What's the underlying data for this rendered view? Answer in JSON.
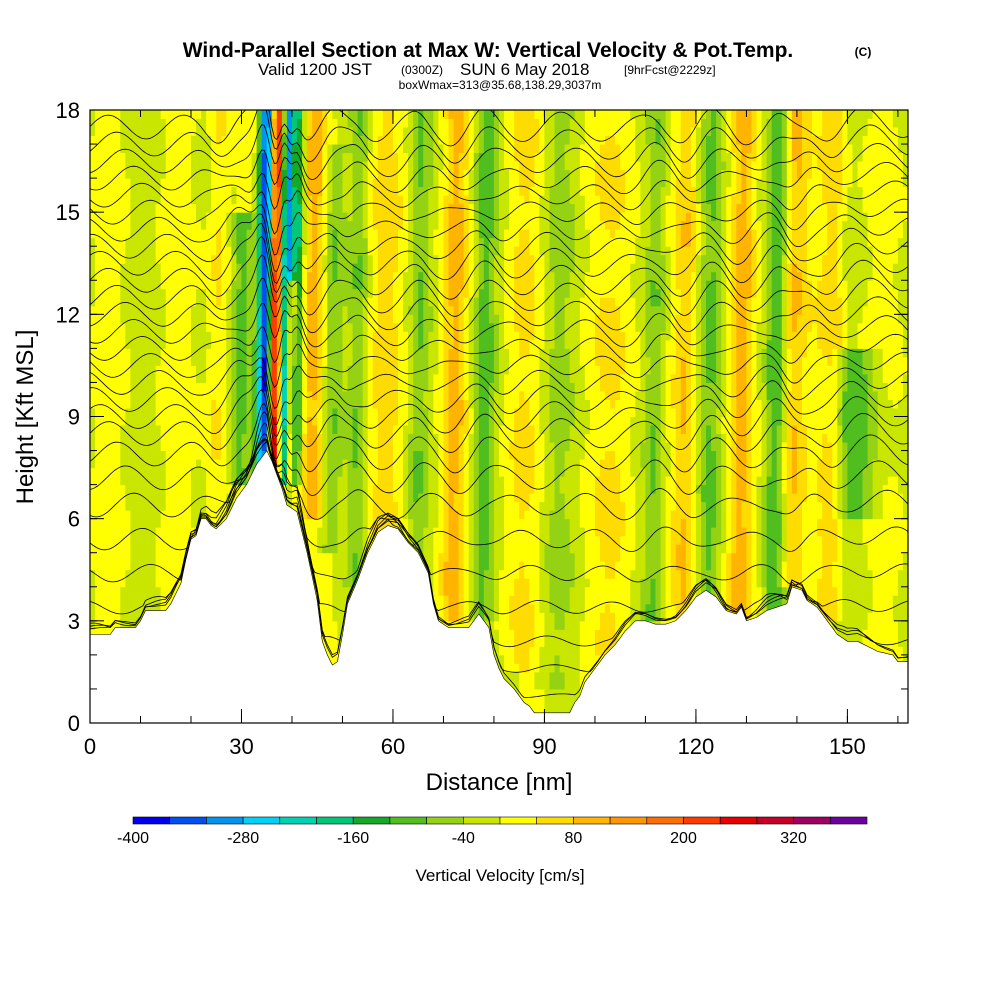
{
  "header": {
    "title": "Wind-Parallel Section at Max W: Vertical Velocity & Pot.Temp.",
    "title_mark": "(C)",
    "valid_prefix": "Valid 1200 JST",
    "valid_utc": "(0300Z)",
    "valid_date": "SUN 6 May 2018",
    "forecast": "[9hrFcst@2229z]",
    "boxinfo": "boxWmax=313@35.68,138.29,3037m"
  },
  "chart_data": {
    "type": "heatmap",
    "xlabel": "Distance [nm]",
    "ylabel": "Height [Kft MSL]",
    "xlim": [
      0,
      162
    ],
    "ylim": [
      0,
      18
    ],
    "x_ticks": [
      0,
      30,
      60,
      90,
      120,
      150
    ],
    "y_ticks": [
      0,
      3,
      6,
      9,
      12,
      15,
      18
    ],
    "x_tick_labels": [
      "0",
      "30",
      "60",
      "90",
      "120",
      "150"
    ],
    "y_tick_labels": [
      "0",
      "3",
      "6",
      "9",
      "12",
      "15",
      "18"
    ],
    "terrain_height_kft": [
      [
        0,
        2.6
      ],
      [
        4,
        2.6
      ],
      [
        5,
        2.8
      ],
      [
        9,
        2.8
      ],
      [
        10,
        3.0
      ],
      [
        11,
        3.3
      ],
      [
        15,
        3.3
      ],
      [
        16,
        3.5
      ],
      [
        17,
        3.8
      ],
      [
        18,
        4.1
      ],
      [
        19,
        4.8
      ],
      [
        20,
        5.4
      ],
      [
        21,
        5.5
      ],
      [
        22,
        6.0
      ],
      [
        23,
        6.0
      ],
      [
        24,
        5.8
      ],
      [
        25,
        5.7
      ],
      [
        27,
        6.0
      ],
      [
        29,
        6.6
      ],
      [
        31,
        7.0
      ],
      [
        33,
        7.6
      ],
      [
        35,
        8.0
      ],
      [
        36,
        7.7
      ],
      [
        37,
        7.3
      ],
      [
        38,
        6.9
      ],
      [
        39,
        6.4
      ],
      [
        41,
        6.2
      ],
      [
        42,
        5.6
      ],
      [
        43,
        5.0
      ],
      [
        44,
        4.3
      ],
      [
        45,
        3.6
      ],
      [
        46,
        2.4
      ],
      [
        47,
        2.0
      ],
      [
        48,
        1.7
      ],
      [
        49,
        1.8
      ],
      [
        50,
        2.6
      ],
      [
        51,
        3.5
      ],
      [
        53,
        4.2
      ],
      [
        55,
        5.0
      ],
      [
        57,
        5.6
      ],
      [
        59,
        5.8
      ],
      [
        61,
        5.7
      ],
      [
        63,
        5.3
      ],
      [
        65,
        5.0
      ],
      [
        67,
        4.4
      ],
      [
        68,
        3.5
      ],
      [
        69,
        3.0
      ],
      [
        71,
        2.8
      ],
      [
        73,
        2.8
      ],
      [
        75,
        2.8
      ],
      [
        77,
        3.2
      ],
      [
        79,
        2.8
      ],
      [
        80,
        2.0
      ],
      [
        81,
        1.6
      ],
      [
        82,
        1.3
      ],
      [
        84,
        1.0
      ],
      [
        86,
        0.6
      ],
      [
        87,
        0.5
      ],
      [
        88,
        0.3
      ],
      [
        95,
        0.3
      ],
      [
        96,
        0.6
      ],
      [
        97,
        0.8
      ],
      [
        98,
        1.2
      ],
      [
        100,
        1.6
      ],
      [
        102,
        2.0
      ],
      [
        104,
        2.3
      ],
      [
        106,
        2.7
      ],
      [
        108,
        3.0
      ],
      [
        110,
        3.0
      ],
      [
        112,
        2.9
      ],
      [
        114,
        2.9
      ],
      [
        116,
        3.0
      ],
      [
        118,
        3.3
      ],
      [
        120,
        3.7
      ],
      [
        122,
        3.9
      ],
      [
        124,
        3.7
      ],
      [
        126,
        3.3
      ],
      [
        128,
        3.2
      ],
      [
        129,
        3.4
      ],
      [
        130,
        3.0
      ],
      [
        132,
        3.1
      ],
      [
        134,
        3.3
      ],
      [
        136,
        3.4
      ],
      [
        138,
        3.5
      ],
      [
        139,
        4.0
      ],
      [
        141,
        3.9
      ],
      [
        142,
        3.6
      ],
      [
        144,
        3.4
      ],
      [
        146,
        3.0
      ],
      [
        148,
        2.6
      ],
      [
        150,
        2.4
      ],
      [
        152,
        2.4
      ],
      [
        156,
        2.1
      ],
      [
        159,
        2.0
      ],
      [
        160,
        1.8
      ],
      [
        162,
        1.8
      ]
    ],
    "updraft_bands": [
      {
        "x": 25,
        "w": 1.4,
        "amp": 60,
        "y0": 3.0,
        "y1": 18
      },
      {
        "x": 36.5,
        "w": 0.9,
        "amp": 330,
        "y0": 6.5,
        "y1": 18
      },
      {
        "x": 39.5,
        "w": 0.7,
        "amp": 220,
        "y0": 7.0,
        "y1": 13
      },
      {
        "x": 44,
        "w": 1.5,
        "amp": 80,
        "y0": 6.0,
        "y1": 18
      },
      {
        "x": 58,
        "w": 2.5,
        "amp": 40,
        "y0": 5.0,
        "y1": 18
      },
      {
        "x": 72,
        "w": 1.6,
        "amp": 80,
        "y0": 3.0,
        "y1": 18
      },
      {
        "x": 85,
        "w": 3,
        "amp": 35,
        "y0": 1.5,
        "y1": 18
      },
      {
        "x": 105,
        "w": 3,
        "amp": 40,
        "y0": 2.0,
        "y1": 18
      },
      {
        "x": 118,
        "w": 1.4,
        "amp": 70,
        "y0": 3.0,
        "y1": 18
      },
      {
        "x": 129,
        "w": 1.5,
        "amp": 80,
        "y0": 3.0,
        "y1": 18
      },
      {
        "x": 139,
        "w": 1.6,
        "amp": 90,
        "y0": 4.0,
        "y1": 18
      },
      {
        "x": 147,
        "w": 1.6,
        "amp": 70,
        "y0": 3.0,
        "y1": 18
      }
    ],
    "downdraft_bands": [
      {
        "x": 34.5,
        "w": 1.1,
        "amp": -380,
        "y0": 6.8,
        "y1": 18
      },
      {
        "x": 38.8,
        "w": 0.8,
        "amp": -300,
        "y0": 7.0,
        "y1": 18
      },
      {
        "x": 30,
        "w": 1.5,
        "amp": -120,
        "y0": 7.0,
        "y1": 15
      },
      {
        "x": 41,
        "w": 0.7,
        "amp": -160,
        "y0": 7.0,
        "y1": 18
      },
      {
        "x": 48,
        "w": 1.4,
        "amp": -80,
        "y0": 5.0,
        "y1": 17
      },
      {
        "x": 53,
        "w": 1.2,
        "amp": -60,
        "y0": 4.0,
        "y1": 18
      },
      {
        "x": 65,
        "w": 1.3,
        "amp": -60,
        "y0": 4.0,
        "y1": 18
      },
      {
        "x": 78,
        "w": 1.6,
        "amp": -90,
        "y0": 3.0,
        "y1": 18
      },
      {
        "x": 92,
        "w": 2.5,
        "amp": -40,
        "y0": 1.0,
        "y1": 18
      },
      {
        "x": 112,
        "w": 1.5,
        "amp": -80,
        "y0": 3.0,
        "y1": 18
      },
      {
        "x": 123,
        "w": 1.5,
        "amp": -70,
        "y0": 3.0,
        "y1": 18
      },
      {
        "x": 136,
        "w": 1.5,
        "amp": -100,
        "y0": 3.0,
        "y1": 18
      },
      {
        "x": 152,
        "w": 3.5,
        "amp": -90,
        "y0": 6.0,
        "y1": 11
      }
    ],
    "isentrope_base_heights_kft": [
      0.8,
      1.6,
      2.4,
      3.4,
      4.4,
      5.4,
      6.4,
      7.2,
      7.9,
      8.5,
      9.0,
      9.5,
      10.0,
      10.5,
      11.0,
      11.5,
      12.0,
      12.5,
      13.0,
      13.5,
      14.0,
      14.5,
      15.0,
      15.5,
      16.0,
      16.5,
      17.0,
      17.5
    ],
    "colorbar": {
      "label": "Vertical Velocity [cm/s]",
      "bounds": [
        -400,
        400
      ],
      "step": 40,
      "tick_labels": [
        "-400",
        "-280",
        "-160",
        "-40",
        "80",
        "200",
        "320"
      ],
      "tick_values": [
        -400,
        -280,
        -160,
        -40,
        80,
        200,
        320
      ],
      "colors": [
        "#0000ee",
        "#0050f0",
        "#0096f0",
        "#00d2f5",
        "#00d2b4",
        "#00c878",
        "#14aa28",
        "#50be1e",
        "#96d214",
        "#c8e600",
        "#ffff00",
        "#ffdc00",
        "#ffb400",
        "#ff9600",
        "#ff6e00",
        "#ff3c00",
        "#e60000",
        "#c80028",
        "#a00064",
        "#6e00a0"
      ]
    }
  }
}
